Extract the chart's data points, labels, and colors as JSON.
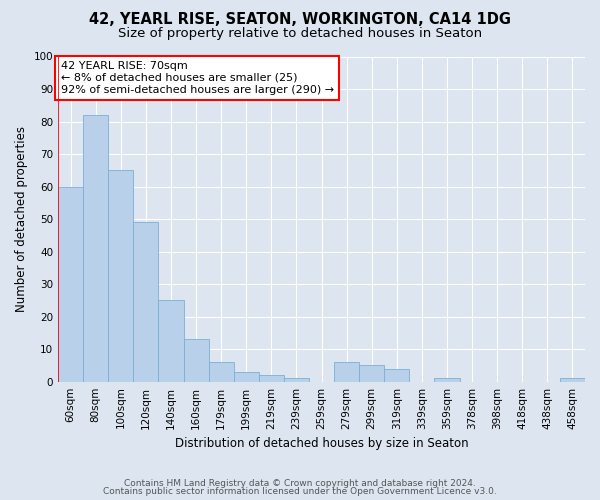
{
  "title1": "42, YEARL RISE, SEATON, WORKINGTON, CA14 1DG",
  "title2": "Size of property relative to detached houses in Seaton",
  "xlabel": "Distribution of detached houses by size in Seaton",
  "ylabel": "Number of detached properties",
  "categories": [
    "60sqm",
    "80sqm",
    "100sqm",
    "120sqm",
    "140sqm",
    "160sqm",
    "179sqm",
    "199sqm",
    "219sqm",
    "239sqm",
    "259sqm",
    "279sqm",
    "299sqm",
    "319sqm",
    "339sqm",
    "359sqm",
    "378sqm",
    "398sqm",
    "418sqm",
    "438sqm",
    "458sqm"
  ],
  "values": [
    60,
    82,
    65,
    49,
    25,
    13,
    6,
    3,
    2,
    1,
    0,
    6,
    5,
    4,
    0,
    1,
    0,
    0,
    0,
    0,
    1
  ],
  "bar_color": "#b8d0ea",
  "bar_edge_color": "#7aafd4",
  "background_color": "#dde6f0",
  "annotation_text": "42 YEARL RISE: 70sqm\n← 8% of detached houses are smaller (25)\n92% of semi-detached houses are larger (290) →",
  "annotation_box_color": "white",
  "annotation_box_edge_color": "red",
  "ylim": [
    0,
    100
  ],
  "yticks": [
    0,
    10,
    20,
    30,
    40,
    50,
    60,
    70,
    80,
    90,
    100
  ],
  "footer1": "Contains HM Land Registry data © Crown copyright and database right 2024.",
  "footer2": "Contains public sector information licensed under the Open Government Licence v3.0.",
  "title1_fontsize": 10.5,
  "title2_fontsize": 9.5,
  "xlabel_fontsize": 8.5,
  "ylabel_fontsize": 8.5,
  "tick_fontsize": 7.5,
  "annotation_fontsize": 8,
  "footer_fontsize": 6.5
}
